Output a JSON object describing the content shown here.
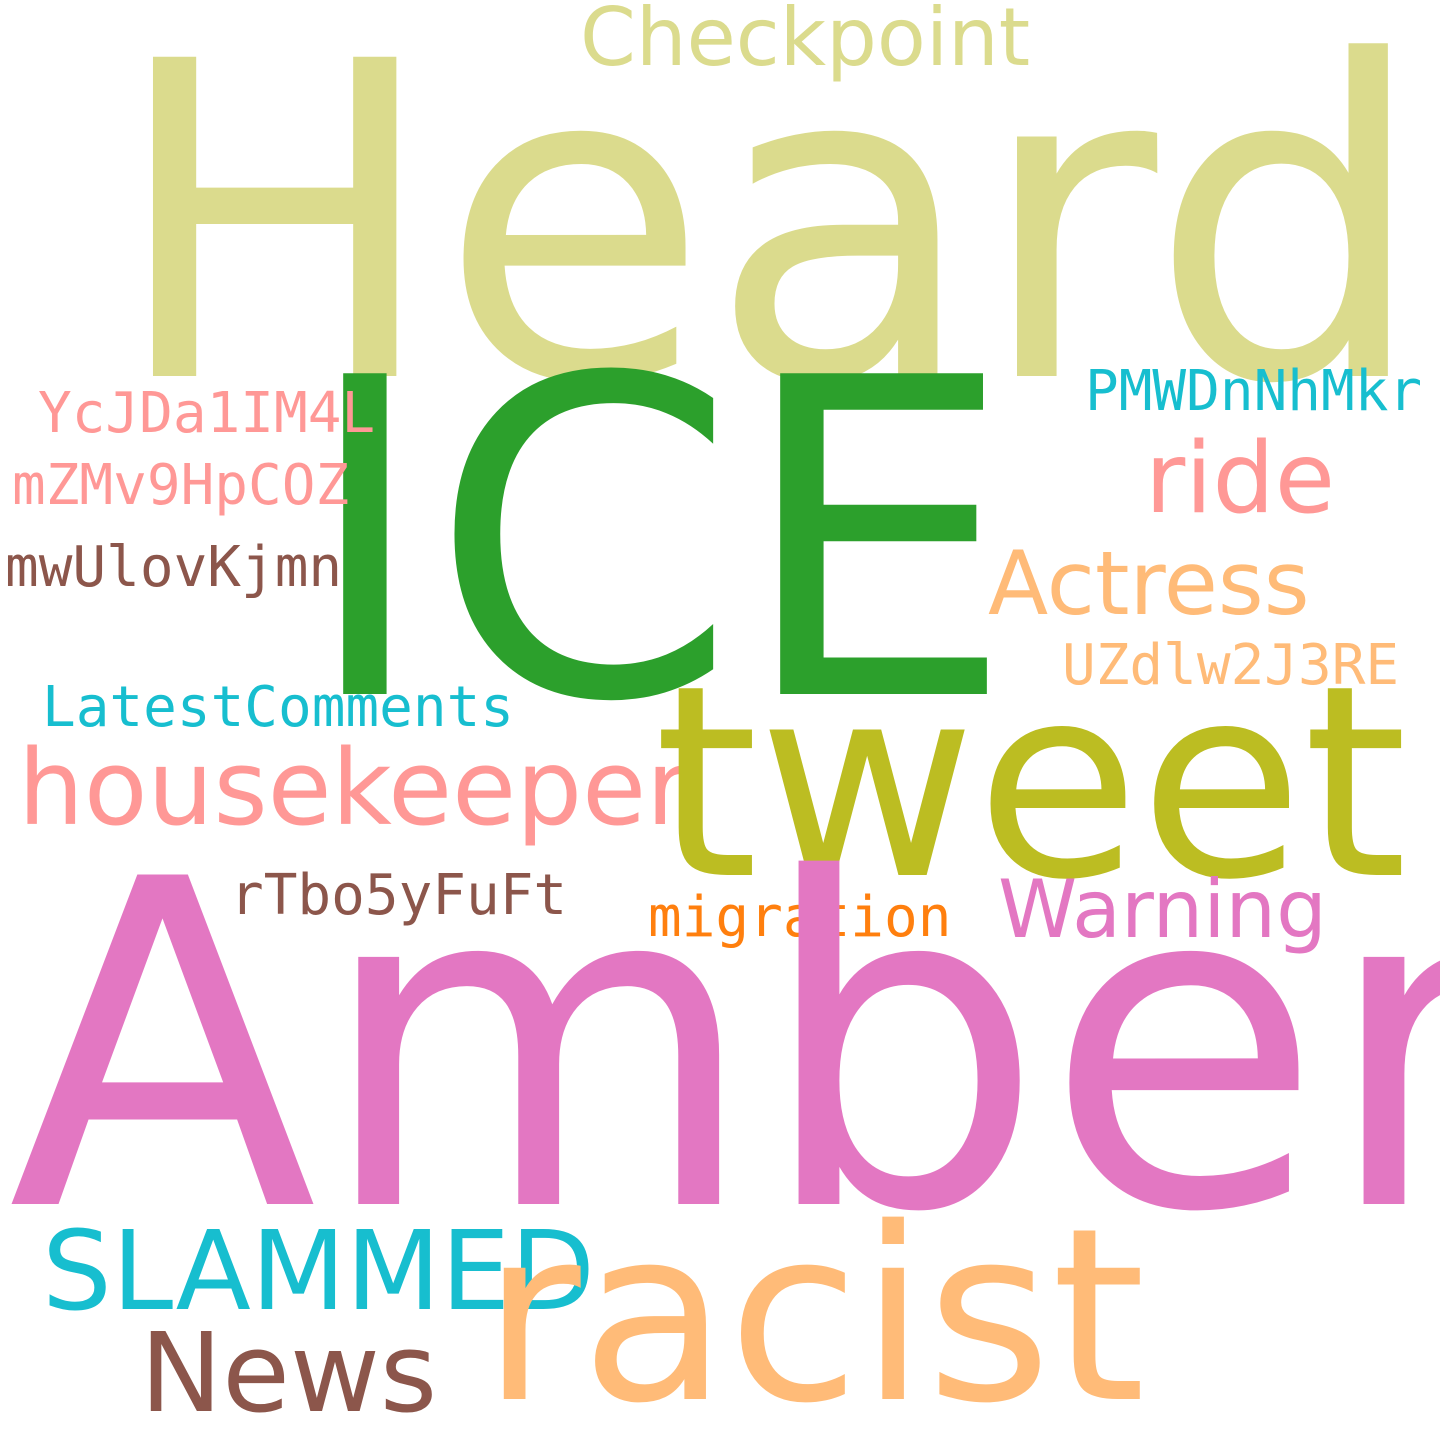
{
  "words": {
    "heard": {
      "text": "Heard",
      "color": "#dbdb8d"
    },
    "checkpoint": {
      "text": "Checkpoint",
      "color": "#dbdb8d"
    },
    "ice": {
      "text": "ICE",
      "color": "#2ca02c"
    },
    "pmw": {
      "text": "PMWDnNhMkr",
      "color": "#17becf"
    },
    "ycj": {
      "text": "YcJDa1IM4L",
      "color": "#ff9896"
    },
    "ride": {
      "text": "ride",
      "color": "#ff9896"
    },
    "mzm": {
      "text": "mZMv9HpCOZ",
      "color": "#ff9896"
    },
    "mwu": {
      "text": "mwUlovKjmn",
      "color": "#8c564b"
    },
    "actress": {
      "text": "Actress",
      "color": "#ffbb78"
    },
    "uzd": {
      "text": "UZdlw2J3RE",
      "color": "#ffbb78"
    },
    "latest": {
      "text": "LatestComments",
      "color": "#17becf"
    },
    "housekeeper": {
      "text": "housekeeper",
      "color": "#ff9896"
    },
    "tweet": {
      "text": "tweet",
      "color": "#bcbd22"
    },
    "rtbo": {
      "text": "rTbo5yFuFt",
      "color": "#8c564b"
    },
    "warning": {
      "text": "Warning",
      "color": "#e377c2"
    },
    "migration": {
      "text": "migration",
      "color": "#ff7f0e"
    },
    "amber": {
      "text": "Amber",
      "color": "#e377c2"
    },
    "slammed": {
      "text": "SLAMMED",
      "color": "#17becf"
    },
    "racist": {
      "text": "racist",
      "color": "#ffbb78"
    },
    "news": {
      "text": "News",
      "color": "#8c564b"
    }
  }
}
